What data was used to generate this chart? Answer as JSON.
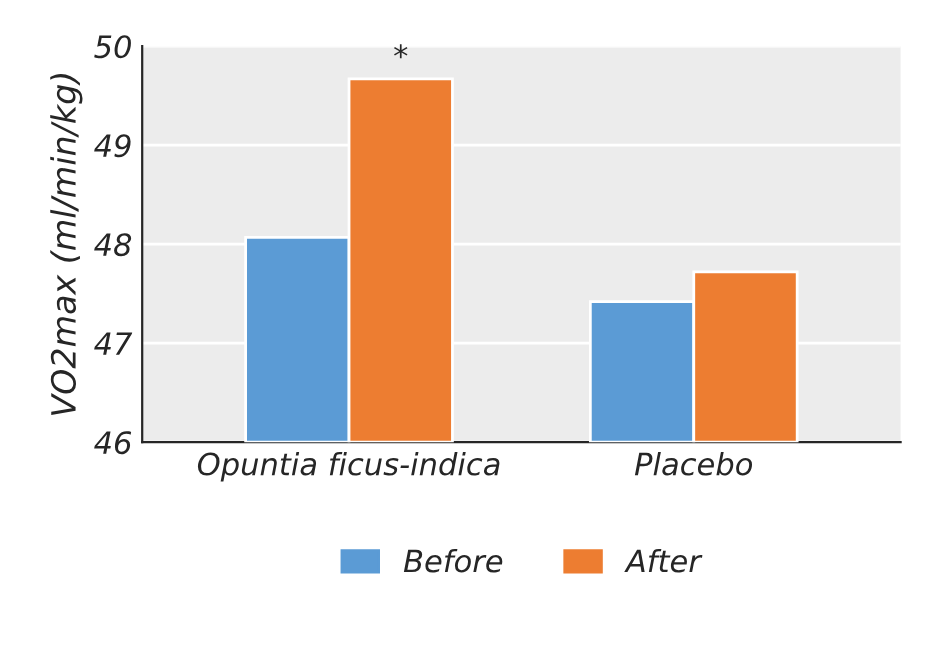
{
  "chart_data": {
    "type": "bar",
    "ylabel": "VO2max (ml/min/kg)",
    "categories": [
      "Opuntia ficus-indica",
      "Placebo"
    ],
    "series": [
      {
        "name": "Before",
        "color": "#5b9bd5",
        "values": [
          48.07,
          47.42
        ]
      },
      {
        "name": "After",
        "color": "#ed7d31",
        "values": [
          49.67,
          47.72
        ]
      }
    ],
    "ylim": [
      46,
      50
    ],
    "yticks": [
      46,
      47,
      48,
      49,
      50
    ],
    "grid": "y",
    "legend": "bottom",
    "annotations": [
      {
        "text": "*",
        "x": "Opuntia ficus-indica",
        "y": 49.67
      }
    ]
  }
}
